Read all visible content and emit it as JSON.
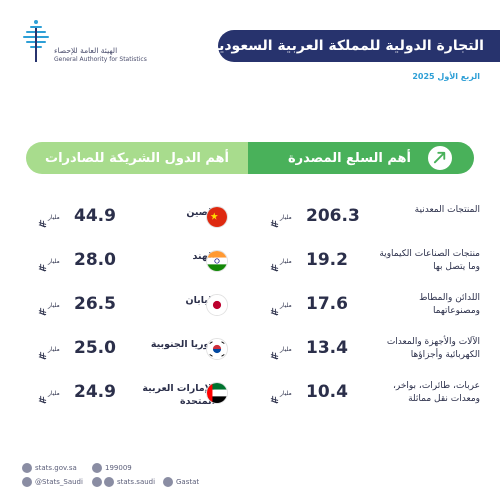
{
  "header": {
    "logo_ar": "الهيئة العامة للإحصاء",
    "logo_en": "General Authority for Statistics",
    "title": "التجارة الدولية للمملكة العربية السعودية",
    "period": "الربع الأول 2025"
  },
  "sections": {
    "products_title": "أهم السلع المصدرة",
    "partners_title": "أهم الدول الشريكة للصادرات"
  },
  "unit": "مليار",
  "products": [
    {
      "name": "المنتجات المعدنية",
      "value": "206.3"
    },
    {
      "name": "منتجات الصناعات الكيماوية وما يتصل بها",
      "value": "19.2"
    },
    {
      "name": "اللدائن والمطاط ومصنوعاتهما",
      "value": "17.6"
    },
    {
      "name": "الآلات والأجهزة والمعدات الكهربائية وأجزاؤها",
      "value": "13.4"
    },
    {
      "name": "عربات، طائرات، بواخر، ومعدات نقل مماثلة",
      "value": "10.4"
    }
  ],
  "partners": [
    {
      "name": "الصين",
      "value": "44.9",
      "flag": "china-flag-icon"
    },
    {
      "name": "الهند",
      "value": "28.0",
      "flag": "india-flag-icon"
    },
    {
      "name": "اليابان",
      "value": "26.5",
      "flag": "japan-flag-icon"
    },
    {
      "name": "كوريا الجنوبية",
      "value": "25.0",
      "flag": "south-korea-flag-icon"
    },
    {
      "name": "الإمارات العربية المتحدة",
      "value": "24.9",
      "flag": "uae-flag-icon"
    }
  ],
  "footer": {
    "website": "stats.gov.sa",
    "phone": "199009",
    "twitter": "@Stats_Saudi",
    "social": "stats.saudi",
    "gastat": "Gastat"
  },
  "colors": {
    "title_bar": "#27336d",
    "section_dark_green": "#49b15a",
    "section_light_green": "#a8dc8d",
    "period_blue": "#2e9fd6"
  }
}
